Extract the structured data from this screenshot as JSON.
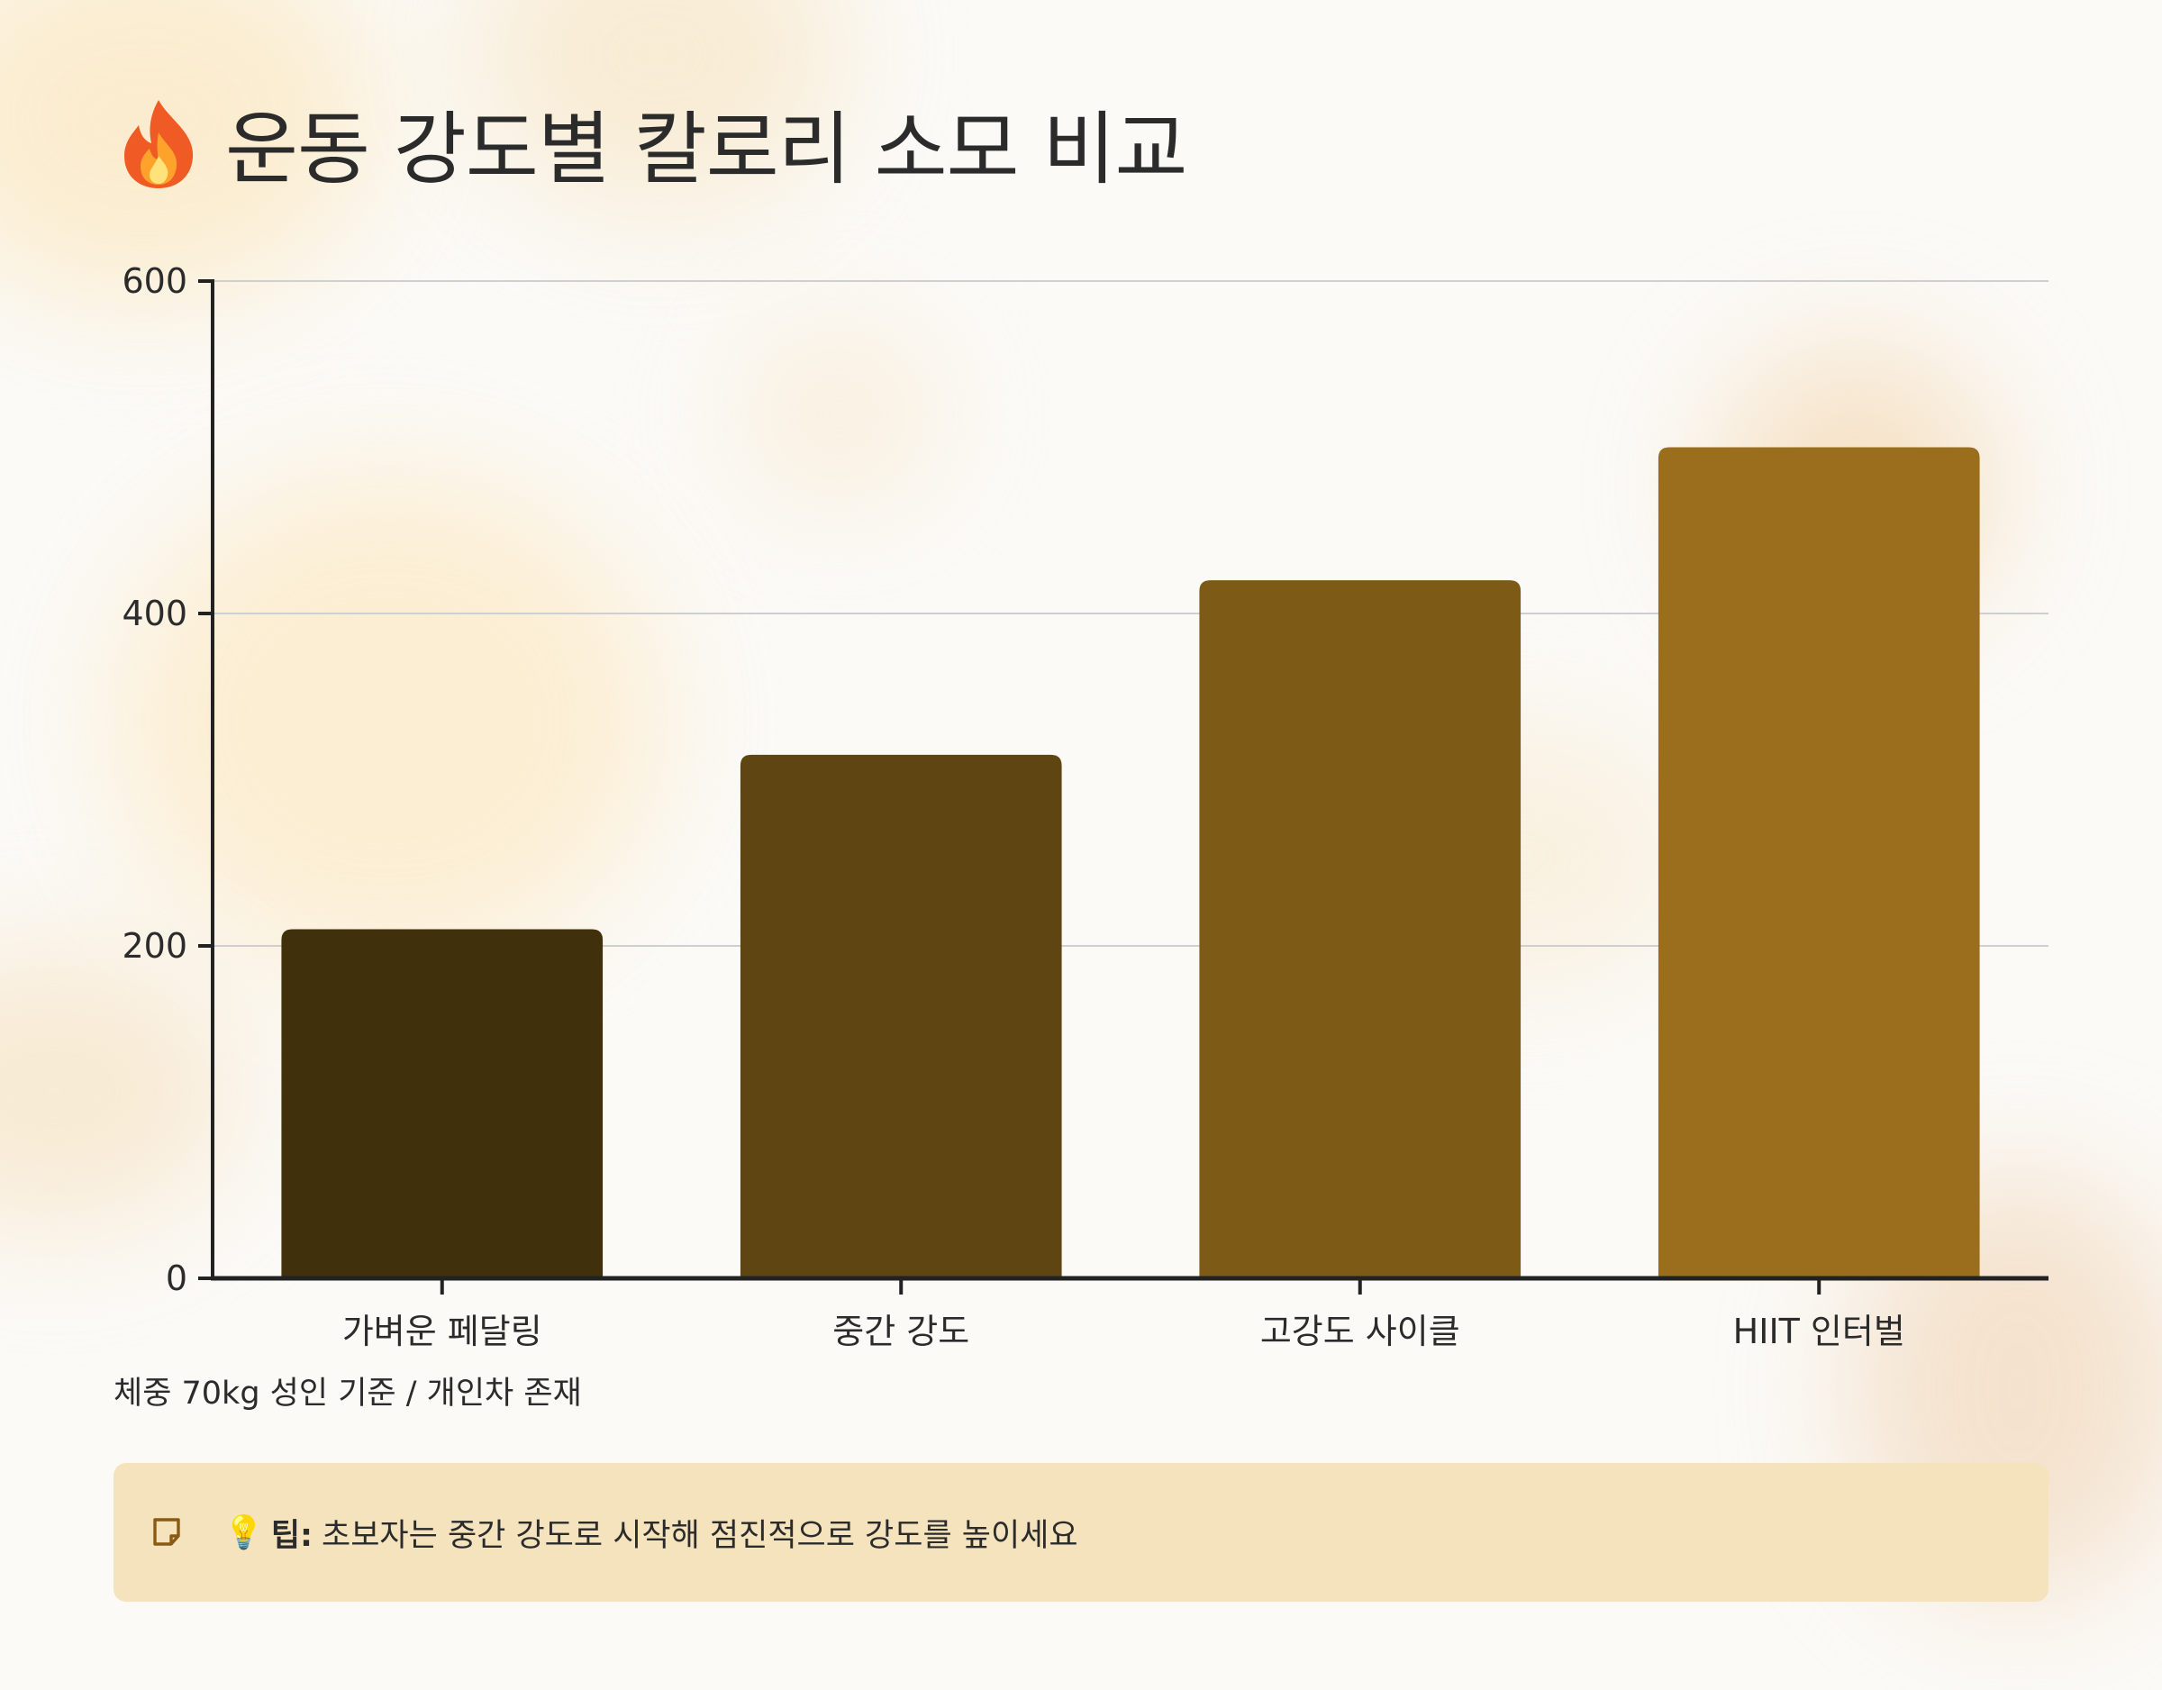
{
  "title": {
    "emoji": "🔥",
    "text": "운동 강도별 칼로리 소모 비교"
  },
  "chart_data": {
    "type": "bar",
    "categories": [
      "가벼운 페달링",
      "중간 강도",
      "고강도 사이클",
      "HIIT 인터벌"
    ],
    "values": [
      210,
      315,
      420,
      500
    ],
    "yticks": [
      0,
      200,
      400,
      600
    ],
    "ylim": [
      0,
      600
    ],
    "grid": true,
    "colors": [
      "#40300c",
      "#5e4511",
      "#7e5a17",
      "#9a6e1c"
    ]
  },
  "note": "체중 70kg 성인 기준 / 개인차 존재",
  "tip": {
    "bulb": "💡",
    "label": "팁:",
    "text": "초보자는 중간 강도로 시작해 점진적으로 강도를 높이세요"
  }
}
